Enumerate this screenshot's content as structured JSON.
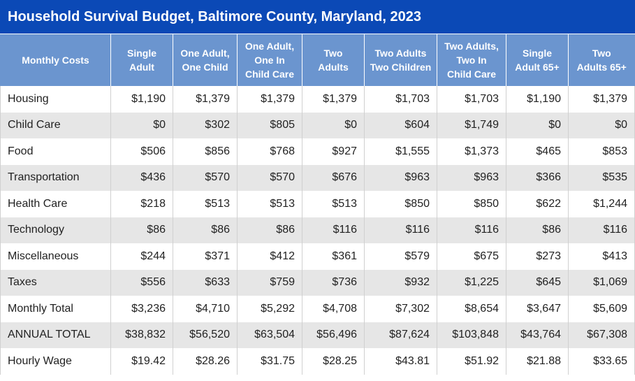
{
  "title": "Household Survival Budget, Baltimore County, Maryland, 2023",
  "chart_data": {
    "type": "table",
    "title": "Household Survival Budget, Baltimore County, Maryland, 2023",
    "columns": [
      [
        "Monthly Costs"
      ],
      [
        "Single",
        "Adult"
      ],
      [
        "One Adult,",
        "One Child"
      ],
      [
        "One Adult,",
        "One In",
        "Child Care"
      ],
      [
        "Two",
        "Adults"
      ],
      [
        "Two Adults",
        "Two Children"
      ],
      [
        "Two Adults,",
        "Two In",
        "Child Care"
      ],
      [
        "Single",
        "Adult 65+"
      ],
      [
        "Two",
        "Adults 65+"
      ]
    ],
    "rows": [
      {
        "label": "Housing",
        "values": [
          "$1,190",
          "$1,379",
          "$1,379",
          "$1,379",
          "$1,703",
          "$1,703",
          "$1,190",
          "$1,379"
        ]
      },
      {
        "label": "Child Care",
        "values": [
          "$0",
          "$302",
          "$805",
          "$0",
          "$604",
          "$1,749",
          "$0",
          "$0"
        ]
      },
      {
        "label": "Food",
        "values": [
          "$506",
          "$856",
          "$768",
          "$927",
          "$1,555",
          "$1,373",
          "$465",
          "$853"
        ]
      },
      {
        "label": "Transportation",
        "values": [
          "$436",
          "$570",
          "$570",
          "$676",
          "$963",
          "$963",
          "$366",
          "$535"
        ]
      },
      {
        "label": "Health Care",
        "values": [
          "$218",
          "$513",
          "$513",
          "$513",
          "$850",
          "$850",
          "$622",
          "$1,244"
        ]
      },
      {
        "label": "Technology",
        "values": [
          "$86",
          "$86",
          "$86",
          "$116",
          "$116",
          "$116",
          "$86",
          "$116"
        ]
      },
      {
        "label": "Miscellaneous",
        "values": [
          "$244",
          "$371",
          "$412",
          "$361",
          "$579",
          "$675",
          "$273",
          "$413"
        ]
      },
      {
        "label": "Taxes",
        "values": [
          "$556",
          "$633",
          "$759",
          "$736",
          "$932",
          "$1,225",
          "$645",
          "$1,069"
        ]
      },
      {
        "label": "Monthly Total",
        "values": [
          "$3,236",
          "$4,710",
          "$5,292",
          "$4,708",
          "$7,302",
          "$8,654",
          "$3,647",
          "$5,609"
        ]
      },
      {
        "label": "ANNUAL TOTAL",
        "values": [
          "$38,832",
          "$56,520",
          "$63,504",
          "$56,496",
          "$87,624",
          "$103,848",
          "$43,764",
          "$67,308"
        ]
      },
      {
        "label": "Hourly Wage",
        "values": [
          "$19.42",
          "$28.26",
          "$31.75",
          "$28.25",
          "$43.81",
          "$51.92",
          "$21.88",
          "$33.65"
        ]
      }
    ]
  },
  "colors": {
    "title_bg": "#0b49b6",
    "header_bg": "#6b95cf",
    "stripe_bg": "#e6e6e6"
  }
}
